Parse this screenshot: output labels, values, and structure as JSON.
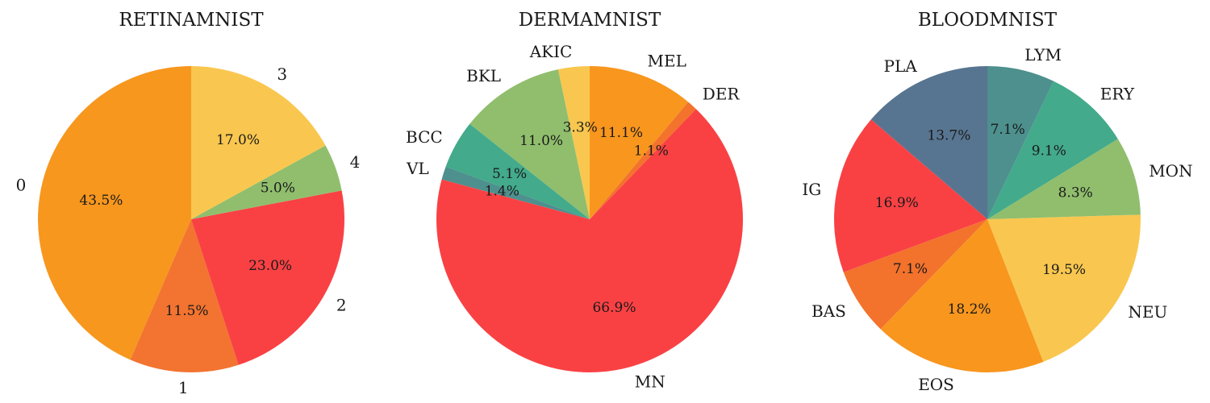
{
  "chart_data": [
    {
      "type": "pie",
      "title": "RETINAMNIST",
      "start_angle": 90,
      "direction": "counterclockwise",
      "slices": [
        {
          "label": "0",
          "value": 43.5,
          "pct_text": "43.5%",
          "color": "#F7971E"
        },
        {
          "label": "1",
          "value": 11.5,
          "pct_text": "11.5%",
          "color": "#F27430"
        },
        {
          "label": "2",
          "value": 23.0,
          "pct_text": "23.0%",
          "color": "#F94144"
        },
        {
          "label": "4",
          "value": 5.0,
          "pct_text": "5.0%",
          "color": "#90BE6D"
        },
        {
          "label": "3",
          "value": 17.0,
          "pct_text": "17.0%",
          "color": "#F9C74F"
        }
      ]
    },
    {
      "type": "pie",
      "title": "DERMAMNIST",
      "start_angle": 90,
      "direction": "counterclockwise",
      "slices": [
        {
          "label": "AKIC",
          "value": 3.3,
          "pct_text": "3.3%",
          "color": "#F9C74F"
        },
        {
          "label": "BKL",
          "value": 11.0,
          "pct_text": "11.0%",
          "color": "#90BE6D"
        },
        {
          "label": "BCC",
          "value": 5.1,
          "pct_text": "5.1%",
          "color": "#43AA8B"
        },
        {
          "label": "VL",
          "value": 1.4,
          "pct_text": "1.4%",
          "color": "#4D908E"
        },
        {
          "label": "MN",
          "value": 66.9,
          "pct_text": "66.9%",
          "color": "#F94144"
        },
        {
          "label": "DER",
          "value": 1.1,
          "pct_text": "1.1%",
          "color": "#F3722C"
        },
        {
          "label": "MEL",
          "value": 11.1,
          "pct_text": "11.1%",
          "color": "#F8961E"
        }
      ]
    },
    {
      "type": "pie",
      "title": "BLOODMNIST",
      "start_angle": 90,
      "direction": "counterclockwise",
      "slices": [
        {
          "label": "PLA",
          "value": 13.7,
          "pct_text": "13.7%",
          "color": "#577590"
        },
        {
          "label": "IG",
          "value": 16.9,
          "pct_text": "16.9%",
          "color": "#F94144"
        },
        {
          "label": "BAS",
          "value": 7.1,
          "pct_text": "7.1%",
          "color": "#F3722C"
        },
        {
          "label": "EOS",
          "value": 18.2,
          "pct_text": "18.2%",
          "color": "#F8961E"
        },
        {
          "label": "NEU",
          "value": 19.5,
          "pct_text": "19.5%",
          "color": "#F9C74F"
        },
        {
          "label": "MON",
          "value": 8.3,
          "pct_text": "8.3%",
          "color": "#90BE6D"
        },
        {
          "label": "ERY",
          "value": 9.1,
          "pct_text": "9.1%",
          "color": "#43AA8B"
        },
        {
          "label": "LYM",
          "value": 7.1,
          "pct_text": "7.1%",
          "color": "#4D908E"
        }
      ]
    }
  ]
}
